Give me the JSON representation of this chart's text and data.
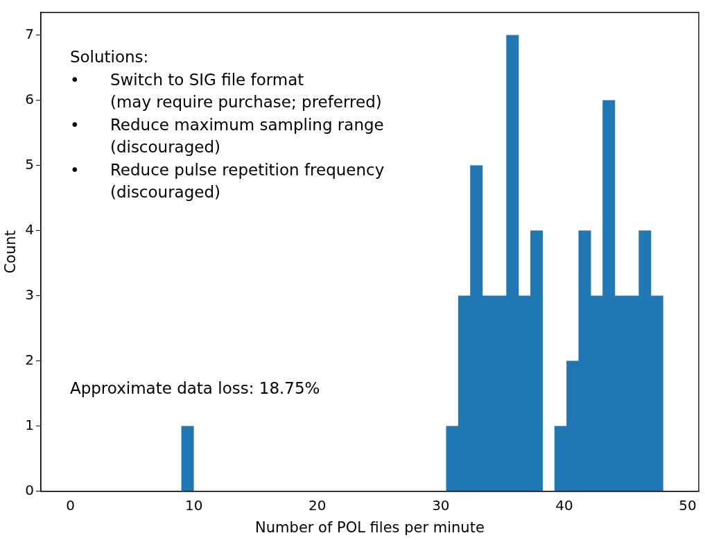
{
  "chart_data": {
    "type": "histogram",
    "xlabel": "Number of POL files per minute",
    "ylabel": "Count",
    "bins": [
      9,
      9.975,
      10.95,
      11.925,
      12.9,
      13.875,
      14.85,
      15.825,
      16.8,
      17.775,
      18.75,
      19.725,
      20.7,
      21.675,
      22.65,
      23.625,
      24.6,
      25.575,
      26.55,
      27.525,
      28.5,
      29.475,
      30.45,
      31.425,
      32.4,
      33.375,
      34.35,
      35.325,
      36.3,
      37.275,
      38.25,
      39.225,
      40.2,
      41.175,
      42.15,
      43.125,
      44.1,
      45.075,
      46.05,
      47.025,
      48
    ],
    "values": [
      1,
      0,
      0,
      0,
      0,
      0,
      0,
      0,
      0,
      0,
      0,
      0,
      0,
      0,
      0,
      0,
      0,
      0,
      0,
      0,
      0,
      0,
      1,
      3,
      5,
      3,
      3,
      7,
      3,
      4,
      0,
      1,
      2,
      4,
      3,
      6,
      3,
      3,
      4,
      3
    ],
    "color": "#1f77b4",
    "xlim": [
      -2.4,
      50.9
    ],
    "ylim": [
      0,
      7.35
    ],
    "xticks": [
      0,
      10,
      20,
      30,
      40,
      50
    ],
    "yticks": [
      0,
      1,
      2,
      3,
      4,
      5,
      6,
      7
    ],
    "grid": false,
    "legend": false,
    "annotations": [
      "Solutions:",
      "• Switch to SIG file format\n(may require purchase; preferred)",
      "• Reduce maximum sampling range\n(discouraged)",
      "• Reduce pulse repetition frequency\n(discouraged)",
      "Approximate data loss: 18.75%"
    ]
  }
}
